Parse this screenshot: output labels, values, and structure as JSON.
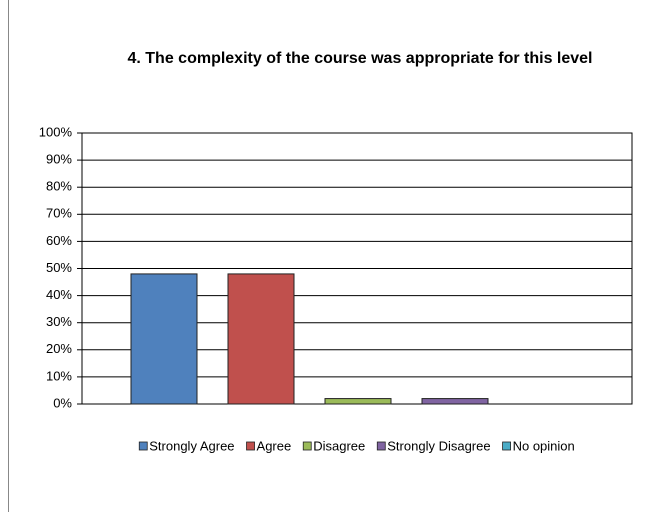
{
  "chart_data": {
    "type": "bar",
    "title": "4. The complexity of the course was appropriate for this level",
    "series": [
      {
        "name": "Strongly Agree",
        "color": "#4f81bd",
        "values": [
          48
        ]
      },
      {
        "name": "Agree",
        "color": "#c0504d",
        "values": [
          48
        ]
      },
      {
        "name": "Disagree",
        "color": "#9bbb59",
        "values": [
          2
        ]
      },
      {
        "name": "Strongly Disagree",
        "color": "#8064a2",
        "values": [
          2
        ]
      },
      {
        "name": "No opinion",
        "color": "#4bacc6",
        "values": [
          0
        ]
      }
    ],
    "ylim": [
      0,
      100
    ],
    "yticks": [
      {
        "value": 0,
        "label": "0%"
      },
      {
        "value": 10,
        "label": "10%"
      },
      {
        "value": 20,
        "label": "20%"
      },
      {
        "value": 30,
        "label": "30%"
      },
      {
        "value": 40,
        "label": "40%"
      },
      {
        "value": 50,
        "label": "50%"
      },
      {
        "value": 60,
        "label": "60%"
      },
      {
        "value": 70,
        "label": "70%"
      },
      {
        "value": 80,
        "label": "80%"
      },
      {
        "value": 90,
        "label": "90%"
      },
      {
        "value": 100,
        "label": "100%"
      }
    ],
    "grid": true,
    "legend": "bottom"
  }
}
